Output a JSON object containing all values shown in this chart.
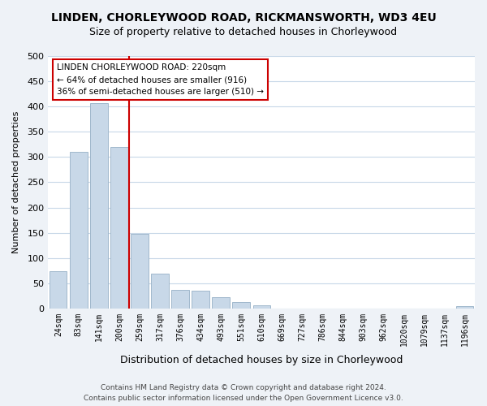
{
  "title": "LINDEN, CHORLEYWOOD ROAD, RICKMANSWORTH, WD3 4EU",
  "subtitle": "Size of property relative to detached houses in Chorleywood",
  "xlabel": "Distribution of detached houses by size in Chorleywood",
  "ylabel": "Number of detached properties",
  "bar_color": "#c8d8e8",
  "bar_edge_color": "#a0b8cc",
  "bin_labels": [
    "24sqm",
    "83sqm",
    "141sqm",
    "200sqm",
    "259sqm",
    "317sqm",
    "376sqm",
    "434sqm",
    "493sqm",
    "551sqm",
    "610sqm",
    "669sqm",
    "727sqm",
    "786sqm",
    "844sqm",
    "903sqm",
    "962sqm",
    "1020sqm",
    "1079sqm",
    "1137sqm",
    "1196sqm"
  ],
  "bar_heights": [
    74,
    311,
    407,
    320,
    148,
    69,
    37,
    36,
    22,
    13,
    6,
    0,
    0,
    0,
    0,
    0,
    0,
    0,
    0,
    0,
    4
  ],
  "ylim": [
    0,
    500
  ],
  "yticks": [
    0,
    50,
    100,
    150,
    200,
    250,
    300,
    350,
    400,
    450,
    500
  ],
  "annotation_title": "LINDEN CHORLEYWOOD ROAD: 220sqm",
  "annotation_line1": "← 64% of detached houses are smaller (916)",
  "annotation_line2": "36% of semi-detached houses are larger (510) →",
  "vline_x": 3.5,
  "vline_color": "#cc0000",
  "annotation_box_edge": "#cc0000",
  "footer_line1": "Contains HM Land Registry data © Crown copyright and database right 2024.",
  "footer_line2": "Contains public sector information licensed under the Open Government Licence v3.0.",
  "background_color": "#eef2f7",
  "plot_bg_color": "#ffffff",
  "grid_color": "#c8d8e8"
}
